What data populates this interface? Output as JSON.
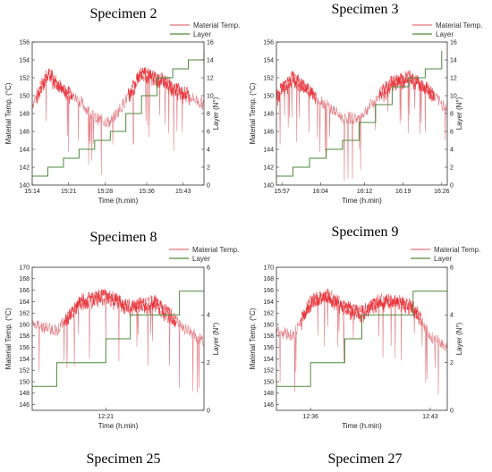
{
  "page_titles": [
    "Specimen 25",
    "Specimen 27"
  ],
  "legend": {
    "temp": "Material Temp.",
    "layer": "Layer"
  },
  "colors": {
    "temp": "#e0737a",
    "temp_hot": "#e8161e",
    "layer": "#4f8a3c",
    "axis": "#333333",
    "layer_dark": "#5a5a20"
  },
  "chart_data": [
    {
      "type": "line",
      "title": "Specimen 2",
      "xlabel": "Time (h.min)",
      "ylabel": "Material Temp. (°C)",
      "y2label": "Layer (N°)",
      "ylim": [
        140,
        156
      ],
      "y2lim": [
        0,
        16
      ],
      "xlim": [
        "15:14",
        "15:47"
      ],
      "x_ticks": [
        "15:14",
        "15:21",
        "15:28",
        "15:36",
        "15:43"
      ],
      "y_ticks": [
        140,
        142,
        144,
        146,
        148,
        150,
        152,
        154,
        156
      ],
      "y2_ticks": [
        0,
        2,
        4,
        6,
        8,
        10,
        12,
        14,
        16
      ],
      "series": [
        {
          "name": "Material Temp.",
          "x": [
            "15:14",
            "15:17",
            "15:20",
            "15:23",
            "15:26",
            "15:29",
            "15:32",
            "15:35",
            "15:38",
            "15:41",
            "15:44",
            "15:47"
          ],
          "y": [
            149,
            152.5,
            150.5,
            149.5,
            147.5,
            147,
            149.5,
            152.5,
            152,
            151,
            150,
            149
          ]
        },
        {
          "name": "Layer",
          "x": [
            "15:14",
            "15:17",
            "15:20",
            "15:23",
            "15:26",
            "15:29",
            "15:32",
            "15:35",
            "15:38",
            "15:41",
            "15:44",
            "15:47"
          ],
          "y": [
            1,
            2,
            3,
            4,
            5,
            6,
            8,
            10,
            12,
            13,
            14,
            15
          ]
        }
      ]
    },
    {
      "type": "line",
      "title": "Specimen 3",
      "xlabel": "Time (h.min)",
      "ylabel": "Material Temp. (°C)",
      "y2label": "Layer (N°)",
      "ylim": [
        140,
        156
      ],
      "y2lim": [
        0,
        16
      ],
      "xlim": [
        "15:56",
        "16:27"
      ],
      "x_ticks": [
        "15:57",
        "16:04",
        "16:12",
        "16:19",
        "16:26"
      ],
      "y_ticks": [
        140,
        142,
        144,
        146,
        148,
        150,
        152,
        154,
        156
      ],
      "y2_ticks": [
        0,
        2,
        4,
        6,
        8,
        10,
        12,
        14,
        16
      ],
      "series": [
        {
          "name": "Material Temp.",
          "x": [
            "15:56",
            "15:59",
            "16:02",
            "16:05",
            "16:08",
            "16:11",
            "16:14",
            "16:17",
            "16:20",
            "16:23",
            "16:26"
          ],
          "y": [
            150,
            152,
            150.5,
            149,
            147.5,
            147.5,
            149.5,
            151.5,
            152,
            151,
            149
          ]
        },
        {
          "name": "Layer",
          "x": [
            "15:56",
            "15:59",
            "16:02",
            "16:05",
            "16:08",
            "16:11",
            "16:14",
            "16:17",
            "16:20",
            "16:23",
            "16:26"
          ],
          "y": [
            1,
            2,
            3,
            4,
            5,
            7,
            9,
            11,
            12,
            13,
            15
          ]
        }
      ]
    },
    {
      "type": "line",
      "title": "Specimen 8",
      "xlabel": "Time (h.min)",
      "ylabel": "Material Temp. (°C)",
      "y2label": "Layer (N°)",
      "ylim": [
        145,
        170
      ],
      "y2lim": [
        0,
        6
      ],
      "xlim": [
        "12:18",
        "12:25"
      ],
      "x_ticks": [
        "12:21"
      ],
      "y_ticks": [
        146,
        148,
        150,
        152,
        154,
        156,
        158,
        160,
        162,
        164,
        166,
        168,
        170
      ],
      "y2_ticks": [
        0,
        2,
        4,
        6
      ],
      "series": [
        {
          "name": "Material Temp.",
          "x": [
            "12:18",
            "12:19",
            "12:20",
            "12:21",
            "12:22",
            "12:23",
            "12:24",
            "12:25"
          ],
          "y": [
            160,
            159,
            164,
            165,
            163,
            164,
            160,
            157
          ]
        },
        {
          "name": "Layer",
          "x": [
            "12:18",
            "12:19",
            "12:20",
            "12:21",
            "12:22",
            "12:23",
            "12:24",
            "12:25"
          ],
          "y": [
            1,
            2,
            2,
            3,
            4,
            4,
            5,
            5
          ]
        }
      ]
    },
    {
      "type": "line",
      "title": "Specimen 9",
      "xlabel": "Time (h.min)",
      "ylabel": "Material Temp. (°C)",
      "y2label": "Layer (N°)",
      "ylim": [
        145,
        170
      ],
      "y2lim": [
        0,
        6
      ],
      "xlim": [
        "12:34",
        "12:44"
      ],
      "x_ticks": [
        "12:36",
        "12:43"
      ],
      "y_ticks": [
        146,
        148,
        150,
        152,
        154,
        156,
        158,
        160,
        162,
        164,
        166,
        168,
        170
      ],
      "y2_ticks": [
        0,
        2,
        4,
        6
      ],
      "series": [
        {
          "name": "Material Temp.",
          "x": [
            "12:34",
            "12:35",
            "12:36",
            "12:37",
            "12:38",
            "12:39",
            "12:40",
            "12:41",
            "12:42",
            "12:43",
            "12:44"
          ],
          "y": [
            159,
            158,
            164,
            165,
            163,
            162,
            164,
            164,
            163,
            158,
            156
          ]
        },
        {
          "name": "Layer",
          "x": [
            "12:34",
            "12:35",
            "12:36",
            "12:37",
            "12:38",
            "12:39",
            "12:40",
            "12:41",
            "12:42",
            "12:43",
            "12:44"
          ],
          "y": [
            1,
            1,
            2,
            2,
            3,
            4,
            4,
            4,
            5,
            5,
            5
          ]
        }
      ]
    }
  ]
}
